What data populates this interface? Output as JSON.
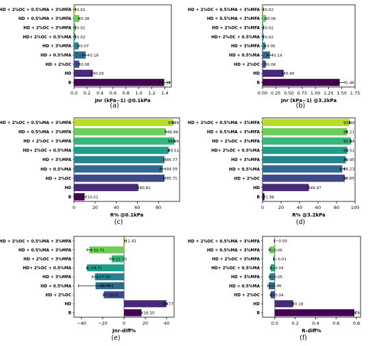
{
  "categories": [
    "HD + 2%OC + 0.5%MA + 3%MFA",
    "HD + 0.5%MA + 3%MFA",
    "HD + 2%OC + 3%MFA",
    "HD+ 2%OC + 0.5%MA",
    "HD + 3%MFA",
    "HD + 0.5%MA",
    "HD + 2%OC",
    "HD",
    "B"
  ],
  "colors": [
    "#b5de2b",
    "#6ece58",
    "#35b779",
    "#1f9e89",
    "#26828e",
    "#31688e",
    "#3e4989",
    "#482878",
    "#440154"
  ],
  "chart_data": [
    {
      "type": "bar",
      "orientation": "horizontal",
      "panel_label": "(a)",
      "xlabel": "Jnr (kPa−1) @0.1kPa",
      "xlim": [
        0,
        1.5
      ],
      "ticks": [
        0,
        0.2,
        0.4,
        0.6,
        0.8,
        1.0,
        1.2,
        1.4
      ],
      "tick_labels": [
        "0.0",
        "0.2",
        "0.4",
        "0.6",
        "0.8",
        "1.0",
        "1.2",
        "1.4"
      ],
      "values": [
        0.02,
        0.08,
        0.02,
        0.02,
        0.07,
        0.18,
        0.08,
        0.29,
        1.39
      ],
      "errors": [
        0.005,
        0.01,
        0.005,
        0.005,
        0.01,
        0.05,
        0.01,
        0.02,
        0.08
      ],
      "labels": [
        "0.02",
        "0.08",
        "0.02",
        "0.02",
        "0.07",
        "0.18",
        "0.08",
        "0.29",
        "1.39"
      ]
    },
    {
      "type": "bar",
      "orientation": "horizontal",
      "panel_label": "(b)",
      "xlabel": "Jnr (kPa−1) @3.2kPa",
      "xlim": [
        0,
        1.75
      ],
      "ticks": [
        0,
        0.25,
        0.5,
        0.75,
        1.0,
        1.25,
        1.5,
        1.75
      ],
      "tick_labels": [
        "0.00",
        "0.25",
        "0.50",
        "0.75",
        "1.00",
        "1.25",
        "1.50",
        "1.75"
      ],
      "values": [
        0.02,
        0.06,
        0.02,
        0.02,
        0.05,
        0.14,
        0.06,
        0.4,
        1.46
      ],
      "errors": [
        0.005,
        0.01,
        0.005,
        0.005,
        0.01,
        0.05,
        0.01,
        0.02,
        0.1
      ],
      "labels": [
        "0.02",
        "0.06",
        "0.02",
        "0.02",
        "0.05",
        "0.14",
        "0.06",
        "0.40",
        "1.46"
      ]
    },
    {
      "type": "bar",
      "orientation": "horizontal",
      "panel_label": "(c)",
      "xlabel": "R% @0.1kPa",
      "xlim": [
        0,
        100
      ],
      "ticks": [
        0,
        20,
        40,
        60,
        80
      ],
      "tick_labels": [
        "0",
        "20",
        "40",
        "60",
        "80"
      ],
      "values": [
        93.85,
        86.86,
        94.96,
        89.51,
        85.77,
        84.09,
        85.71,
        60.81,
        10.02
      ],
      "errors": [
        0.3,
        0.5,
        0.3,
        0.5,
        0.8,
        2.5,
        0.8,
        0.3,
        1.5
      ],
      "labels": [
        "93.85",
        "86.86",
        "94.96",
        "89.51",
        "85.77",
        "84.09",
        "85.71",
        "60.81",
        "10.02"
      ]
    },
    {
      "type": "bar",
      "orientation": "horizontal",
      "panel_label": "(d)",
      "xlabel": "R% @3.2kPa",
      "xlim": [
        0,
        100
      ],
      "ticks": [
        0,
        20,
        40,
        60,
        80,
        100
      ],
      "tick_labels": [
        "0",
        "20",
        "40",
        "60",
        "80",
        "100"
      ],
      "values": [
        93.99,
        91.21,
        95.54,
        91.51,
        89.95,
        86.23,
        88.85,
        49.97,
        1.96
      ],
      "errors": [
        0.3,
        0.5,
        0.3,
        0.5,
        0.8,
        2.5,
        0.8,
        0.5,
        0.3
      ],
      "labels": [
        "93.99",
        "91.21",
        "95.54",
        "91.51",
        "89.95",
        "86.23",
        "88.85",
        "49.97",
        "1.96"
      ]
    },
    {
      "type": "bar",
      "orientation": "horizontal",
      "panel_label": "(e)",
      "xlabel": "Jnr-diff%",
      "xlim": [
        -47,
        47
      ],
      "ticks": [
        -40,
        -20,
        0,
        20,
        40
      ],
      "tick_labels": [
        "−40",
        "−20",
        "0",
        "20",
        "40"
      ],
      "values": [
        1.43,
        -32.71,
        -11.7,
        -34.71,
        -27.39,
        -26.74,
        -19.01,
        39.77,
        16.35
      ],
      "errors": [
        1.0,
        2.0,
        1.5,
        0.5,
        2.5,
        16.0,
        0.5,
        1.0,
        1.0
      ],
      "labels": [
        "1.43",
        "−32.71",
        "−11.70",
        "−34.71",
        "−27.39",
        "−26.74",
        "−19.01",
        "39.77",
        "16.35"
      ]
    },
    {
      "type": "bar",
      "orientation": "horizontal",
      "panel_label": "(f)",
      "xlabel": "R-diff%",
      "xlim": [
        -0.12,
        0.84
      ],
      "ticks": [
        0,
        0.2,
        0.4,
        0.6,
        0.8
      ],
      "tick_labels": [
        "0.0",
        "0.2",
        "0.4",
        "0.6",
        "0.8"
      ],
      "values": [
        -0.004,
        -0.05,
        -0.01,
        -0.04,
        -0.05,
        -0.06,
        -0.04,
        0.18,
        0.78
      ],
      "errors": [
        0.002,
        0.005,
        0.002,
        0.005,
        0.005,
        0.01,
        0.005,
        0.005,
        0.01
      ],
      "labels": [
        "−0.00",
        "−0.05",
        "−0.01",
        "−0.04",
        "−0.05",
        "−0.06",
        "−0.04",
        "0.18",
        "0.78"
      ]
    }
  ]
}
